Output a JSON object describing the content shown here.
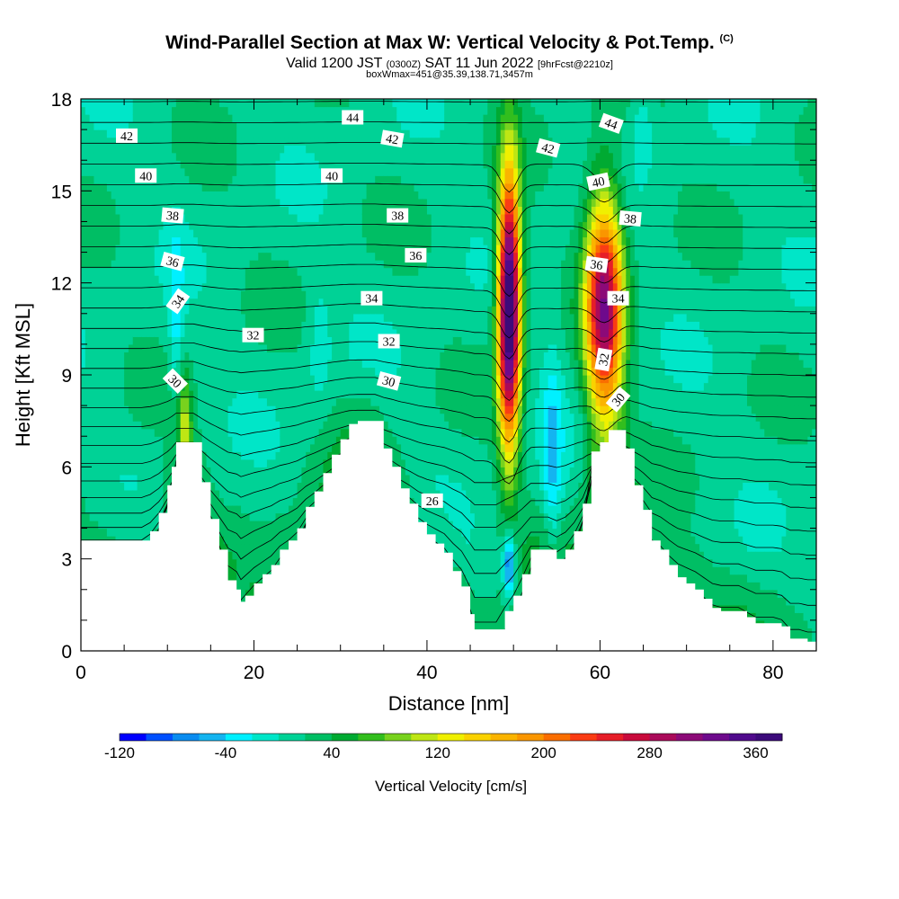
{
  "titles": {
    "main": "Wind-Parallel Section at Max W: Vertical Velocity & Pot.Temp.",
    "main_suffix": "(C)",
    "valid_a": "Valid 1200 JST",
    "valid_b": "(0300Z)",
    "valid_c": "SAT 11 Jun 2022",
    "valid_d": "[9hrFcst@2210z]",
    "box": "boxWmax=451@35.39,138.71,3457m"
  },
  "chart_data": {
    "type": "heatmap",
    "title": "Wind-Parallel Section at Max W: Vertical Velocity & Pot.Temp.",
    "xlabel": "Distance [nm]",
    "ylabel": "Height [Kft MSL]",
    "xlim": [
      0,
      85
    ],
    "ylim": [
      0,
      18
    ],
    "x_ticks": [
      0,
      20,
      40,
      60,
      80
    ],
    "y_ticks": [
      0,
      3,
      6,
      9,
      12,
      15,
      18
    ],
    "colorbar": {
      "label": "Vertical Velocity [cm/s]",
      "min": -120,
      "max": 380,
      "step": 20,
      "tick_values": [
        -120,
        -40,
        40,
        120,
        200,
        280,
        360
      ],
      "colors": [
        "#0000ff",
        "#0050ff",
        "#0a8cf0",
        "#14b4f0",
        "#00f0ff",
        "#00e6c8",
        "#00d296",
        "#00be64",
        "#00aa32",
        "#32be1e",
        "#78d21e",
        "#bee614",
        "#f0f000",
        "#fad200",
        "#fab400",
        "#fa9600",
        "#fa6e00",
        "#fa3c14",
        "#e61e28",
        "#c80a3c",
        "#aa0a5a",
        "#8c0a78",
        "#6e0a8c",
        "#500a8c",
        "#3c0a7a"
      ]
    },
    "terrain": [
      [
        0,
        3.6
      ],
      [
        1,
        3.6
      ],
      [
        2,
        3.6
      ],
      [
        3,
        3.6
      ],
      [
        4,
        3.6
      ],
      [
        5,
        3.6
      ],
      [
        6,
        3.6
      ],
      [
        7,
        3.6
      ],
      [
        8,
        3.9
      ],
      [
        9,
        4.5
      ],
      [
        10,
        5.4
      ],
      [
        10.5,
        6.0
      ],
      [
        11,
        6.8
      ],
      [
        12,
        6.8
      ],
      [
        13,
        6.8
      ],
      [
        14,
        5.5
      ],
      [
        15,
        4.3
      ],
      [
        16,
        3.3
      ],
      [
        17,
        2.3
      ],
      [
        18,
        2.0
      ],
      [
        18.5,
        1.6
      ],
      [
        19,
        1.8
      ],
      [
        20,
        2.2
      ],
      [
        21,
        2.5
      ],
      [
        22,
        2.8
      ],
      [
        23,
        3.3
      ],
      [
        24,
        3.6
      ],
      [
        25,
        4.0
      ],
      [
        26,
        4.7
      ],
      [
        27,
        5.2
      ],
      [
        28,
        5.8
      ],
      [
        29,
        6.4
      ],
      [
        30,
        6.9
      ],
      [
        31,
        7.4
      ],
      [
        32,
        7.5
      ],
      [
        33,
        7.5
      ],
      [
        34,
        7.5
      ],
      [
        35,
        6.6
      ],
      [
        36,
        6.0
      ],
      [
        37,
        5.3
      ],
      [
        38,
        4.8
      ],
      [
        39,
        4.2
      ],
      [
        40,
        3.8
      ],
      [
        41,
        3.5
      ],
      [
        42,
        3.2
      ],
      [
        43,
        2.6
      ],
      [
        44,
        2.1
      ],
      [
        45,
        1.2
      ],
      [
        45.5,
        0.7
      ],
      [
        47,
        0.7
      ],
      [
        48,
        0.7
      ],
      [
        49,
        1.3
      ],
      [
        50,
        1.8
      ],
      [
        51,
        2.5
      ],
      [
        52,
        3.3
      ],
      [
        53,
        3.3
      ],
      [
        54,
        3.3
      ],
      [
        55,
        3.0
      ],
      [
        56,
        3.3
      ],
      [
        57,
        3.9
      ],
      [
        58,
        4.8
      ],
      [
        59,
        6.5
      ],
      [
        60,
        6.8
      ],
      [
        61,
        7.2
      ],
      [
        62,
        7.2
      ],
      [
        63,
        6.6
      ],
      [
        64,
        5.4
      ],
      [
        65,
        4.6
      ],
      [
        66,
        3.6
      ],
      [
        67,
        3.3
      ],
      [
        68,
        2.8
      ],
      [
        69,
        2.4
      ],
      [
        70,
        2.2
      ],
      [
        71,
        2.0
      ],
      [
        72,
        1.7
      ],
      [
        73,
        1.4
      ],
      [
        74,
        1.3
      ],
      [
        75,
        1.3
      ],
      [
        76,
        1.3
      ],
      [
        77,
        1.1
      ],
      [
        78,
        0.9
      ],
      [
        79,
        0.9
      ],
      [
        80,
        0.9
      ],
      [
        81,
        0.8
      ],
      [
        82,
        0.4
      ],
      [
        83,
        0.4
      ],
      [
        84,
        0.3
      ],
      [
        85,
        0.3
      ]
    ],
    "updrafts": [
      {
        "x": 49.5,
        "y": 11.2,
        "sx": 0.9,
        "sy": 3.1,
        "peak": 400
      },
      {
        "x": 60.5,
        "y": 11.2,
        "sx": 1.5,
        "sy": 2.6,
        "peak": 300
      },
      {
        "x": 12.0,
        "y": 7.2,
        "sx": 0.5,
        "sy": 1.2,
        "peak": 90
      }
    ],
    "downdrafts": [
      {
        "x": 49.5,
        "y": 2.8,
        "sx": 0.5,
        "sy": 0.7,
        "peak": -110
      },
      {
        "x": 54.5,
        "y": 6.3,
        "sx": 0.8,
        "sy": 2.3,
        "peak": -55
      },
      {
        "x": 11.0,
        "y": 11.0,
        "sx": 0.6,
        "sy": 2.0,
        "peak": -40
      },
      {
        "x": 27.5,
        "y": 10.0,
        "sx": 0.9,
        "sy": 1.5,
        "peak": -25
      },
      {
        "x": 65.0,
        "y": 17.2,
        "sx": 0.8,
        "sy": 1.0,
        "peak": -30
      }
    ],
    "contour_labels": [
      {
        "text": "42",
        "x": 5.3,
        "y": 16.8,
        "angle": 0
      },
      {
        "text": "44",
        "x": 31.4,
        "y": 17.4,
        "angle": 0
      },
      {
        "text": "42",
        "x": 36.0,
        "y": 16.7,
        "angle": 10
      },
      {
        "text": "42",
        "x": 54.0,
        "y": 16.4,
        "angle": 15
      },
      {
        "text": "44",
        "x": 61.3,
        "y": 17.2,
        "angle": 20
      },
      {
        "text": "40",
        "x": 7.5,
        "y": 15.5,
        "angle": 0
      },
      {
        "text": "40",
        "x": 29.0,
        "y": 15.5,
        "angle": 0
      },
      {
        "text": "40",
        "x": 59.8,
        "y": 15.3,
        "angle": -12
      },
      {
        "text": "38",
        "x": 10.6,
        "y": 14.2,
        "angle": 5
      },
      {
        "text": "38",
        "x": 36.6,
        "y": 14.2,
        "angle": 0
      },
      {
        "text": "38",
        "x": 63.5,
        "y": 14.1,
        "angle": 5
      },
      {
        "text": "36",
        "x": 10.6,
        "y": 12.7,
        "angle": 15
      },
      {
        "text": "36",
        "x": 38.7,
        "y": 12.9,
        "angle": 0
      },
      {
        "text": "36",
        "x": 59.6,
        "y": 12.6,
        "angle": 8
      },
      {
        "text": "34",
        "x": 11.2,
        "y": 11.4,
        "angle": -55
      },
      {
        "text": "34",
        "x": 33.6,
        "y": 11.5,
        "angle": 0
      },
      {
        "text": "34",
        "x": 62.1,
        "y": 11.5,
        "angle": 0
      },
      {
        "text": "32",
        "x": 19.9,
        "y": 10.3,
        "angle": 0
      },
      {
        "text": "32",
        "x": 35.6,
        "y": 10.1,
        "angle": 0
      },
      {
        "text": "32",
        "x": 60.4,
        "y": 9.5,
        "angle": -80
      },
      {
        "text": "30",
        "x": 10.9,
        "y": 8.8,
        "angle": 45
      },
      {
        "text": "30",
        "x": 35.6,
        "y": 8.8,
        "angle": 15
      },
      {
        "text": "30",
        "x": 62.1,
        "y": 8.2,
        "angle": -50
      },
      {
        "text": "26",
        "x": 40.6,
        "y": 4.9,
        "angle": 0
      }
    ]
  }
}
